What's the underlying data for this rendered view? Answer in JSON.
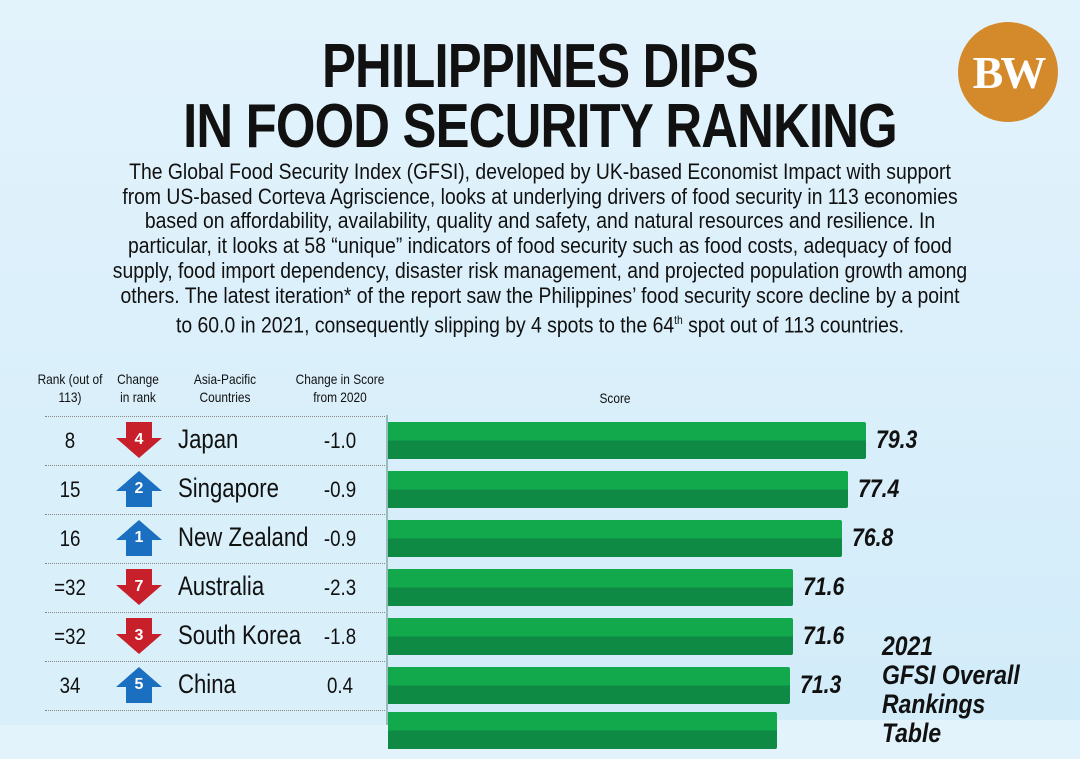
{
  "title_line1": "PHILIPPINES DIPS",
  "title_line2": "IN FOOD SECURITY RANKING",
  "logo": "BW",
  "intro_main": "The Global Food Security Index (GFSI), developed by UK-based Economist Impact with support from US-based Corteva Agriscience, looks at underlying drivers of food security in 113 economies based on affordability, availability, quality and safety, and natural resources and resilience. In particular, it looks at 58 “unique” indicators of food security such as food costs, adequacy of food supply, food import dependency, disaster risk management, and projected population growth among others. The latest iteration* of the report saw the Philippines’ food security score decline by a point to 60.0 in 2021, consequently slipping by 4 spots to the 64",
  "intro_sup": "th",
  "intro_end": " spot out of 113 countries.",
  "headers": {
    "rank": "Rank (out of 113)",
    "change_rank": "Change in rank",
    "country": "Asia-Pacific Countries",
    "change_score": "Change in Score from 2020",
    "score": "Score"
  },
  "caption": {
    "l1": "2021",
    "l2": "GFSI Overall",
    "l3": "Rankings Table"
  },
  "colors": {
    "bar": "#12a84c",
    "down": "#c8202a",
    "up": "#1a6fc0"
  },
  "chart_data": {
    "type": "bar",
    "orientation": "horizontal",
    "ylabel": "Score",
    "rows": [
      {
        "rank": "8",
        "change": "4",
        "dir": "down",
        "country": "Japan",
        "score_change": "-1.0",
        "score": 79.3
      },
      {
        "rank": "15",
        "change": "2",
        "dir": "up",
        "country": "Singapore",
        "score_change": "-0.9",
        "score": 77.4
      },
      {
        "rank": "16",
        "change": "1",
        "dir": "up",
        "country": "New Zealand",
        "score_change": "-0.9",
        "score": 76.8
      },
      {
        "rank": "=32",
        "change": "7",
        "dir": "down",
        "country": "Australia",
        "score_change": "-2.3",
        "score": 71.6
      },
      {
        "rank": "=32",
        "change": "3",
        "dir": "down",
        "country": "South Korea",
        "score_change": "-1.8",
        "score": 71.6
      },
      {
        "rank": "34",
        "change": "5",
        "dir": "up",
        "country": "China",
        "score_change": "0.4",
        "score": 71.3
      }
    ]
  }
}
